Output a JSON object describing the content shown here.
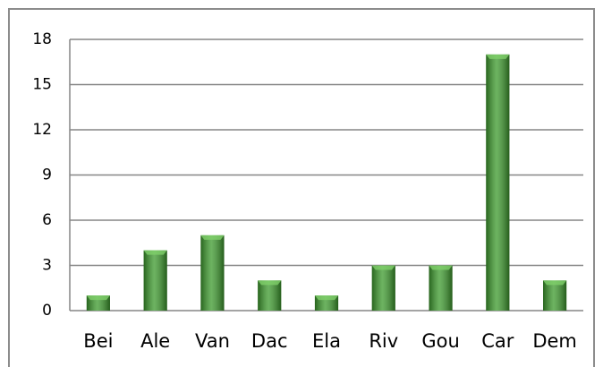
{
  "chart_data": {
    "type": "bar",
    "categories": [
      "Bei",
      "Ale",
      "Van",
      "Dac",
      "Ela",
      "Riv",
      "Gou",
      "Car",
      "Dem"
    ],
    "values": [
      1,
      4,
      5,
      2,
      1,
      3,
      3,
      17,
      2
    ],
    "color": "#3c9a2c",
    "ylim": [
      0,
      18
    ],
    "yticks": [
      0,
      3,
      6,
      9,
      12,
      15,
      18
    ],
    "grid": true
  }
}
